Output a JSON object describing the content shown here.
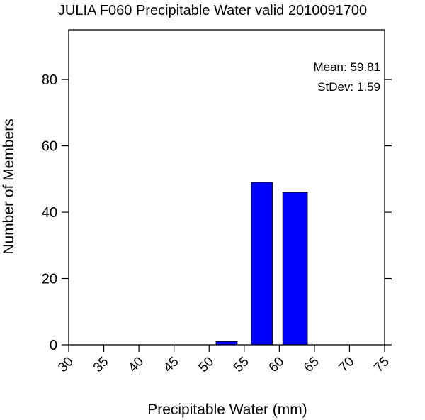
{
  "chart_data": {
    "type": "bar",
    "title": "JULIA F060 Precipitable Water valid 2010091700",
    "xlabel": "Precipitable Water (mm)",
    "ylabel": "Number of Members",
    "xlim": [
      30,
      75
    ],
    "ylim": [
      0,
      95
    ],
    "xticks": [
      "30",
      "35",
      "40",
      "45",
      "50",
      "55",
      "60",
      "65",
      "70",
      "75"
    ],
    "yticks": [
      "0",
      "20",
      "40",
      "60",
      "80"
    ],
    "bins": [
      {
        "x0": 51,
        "x1": 54,
        "value": 1
      },
      {
        "x0": 56,
        "x1": 59,
        "value": 49
      },
      {
        "x0": 60.5,
        "x1": 64,
        "value": 46
      }
    ],
    "annotations": [
      "Mean: 59.81",
      "StDev: 1.59"
    ],
    "bar_color": "#0000ff",
    "grid": false
  }
}
